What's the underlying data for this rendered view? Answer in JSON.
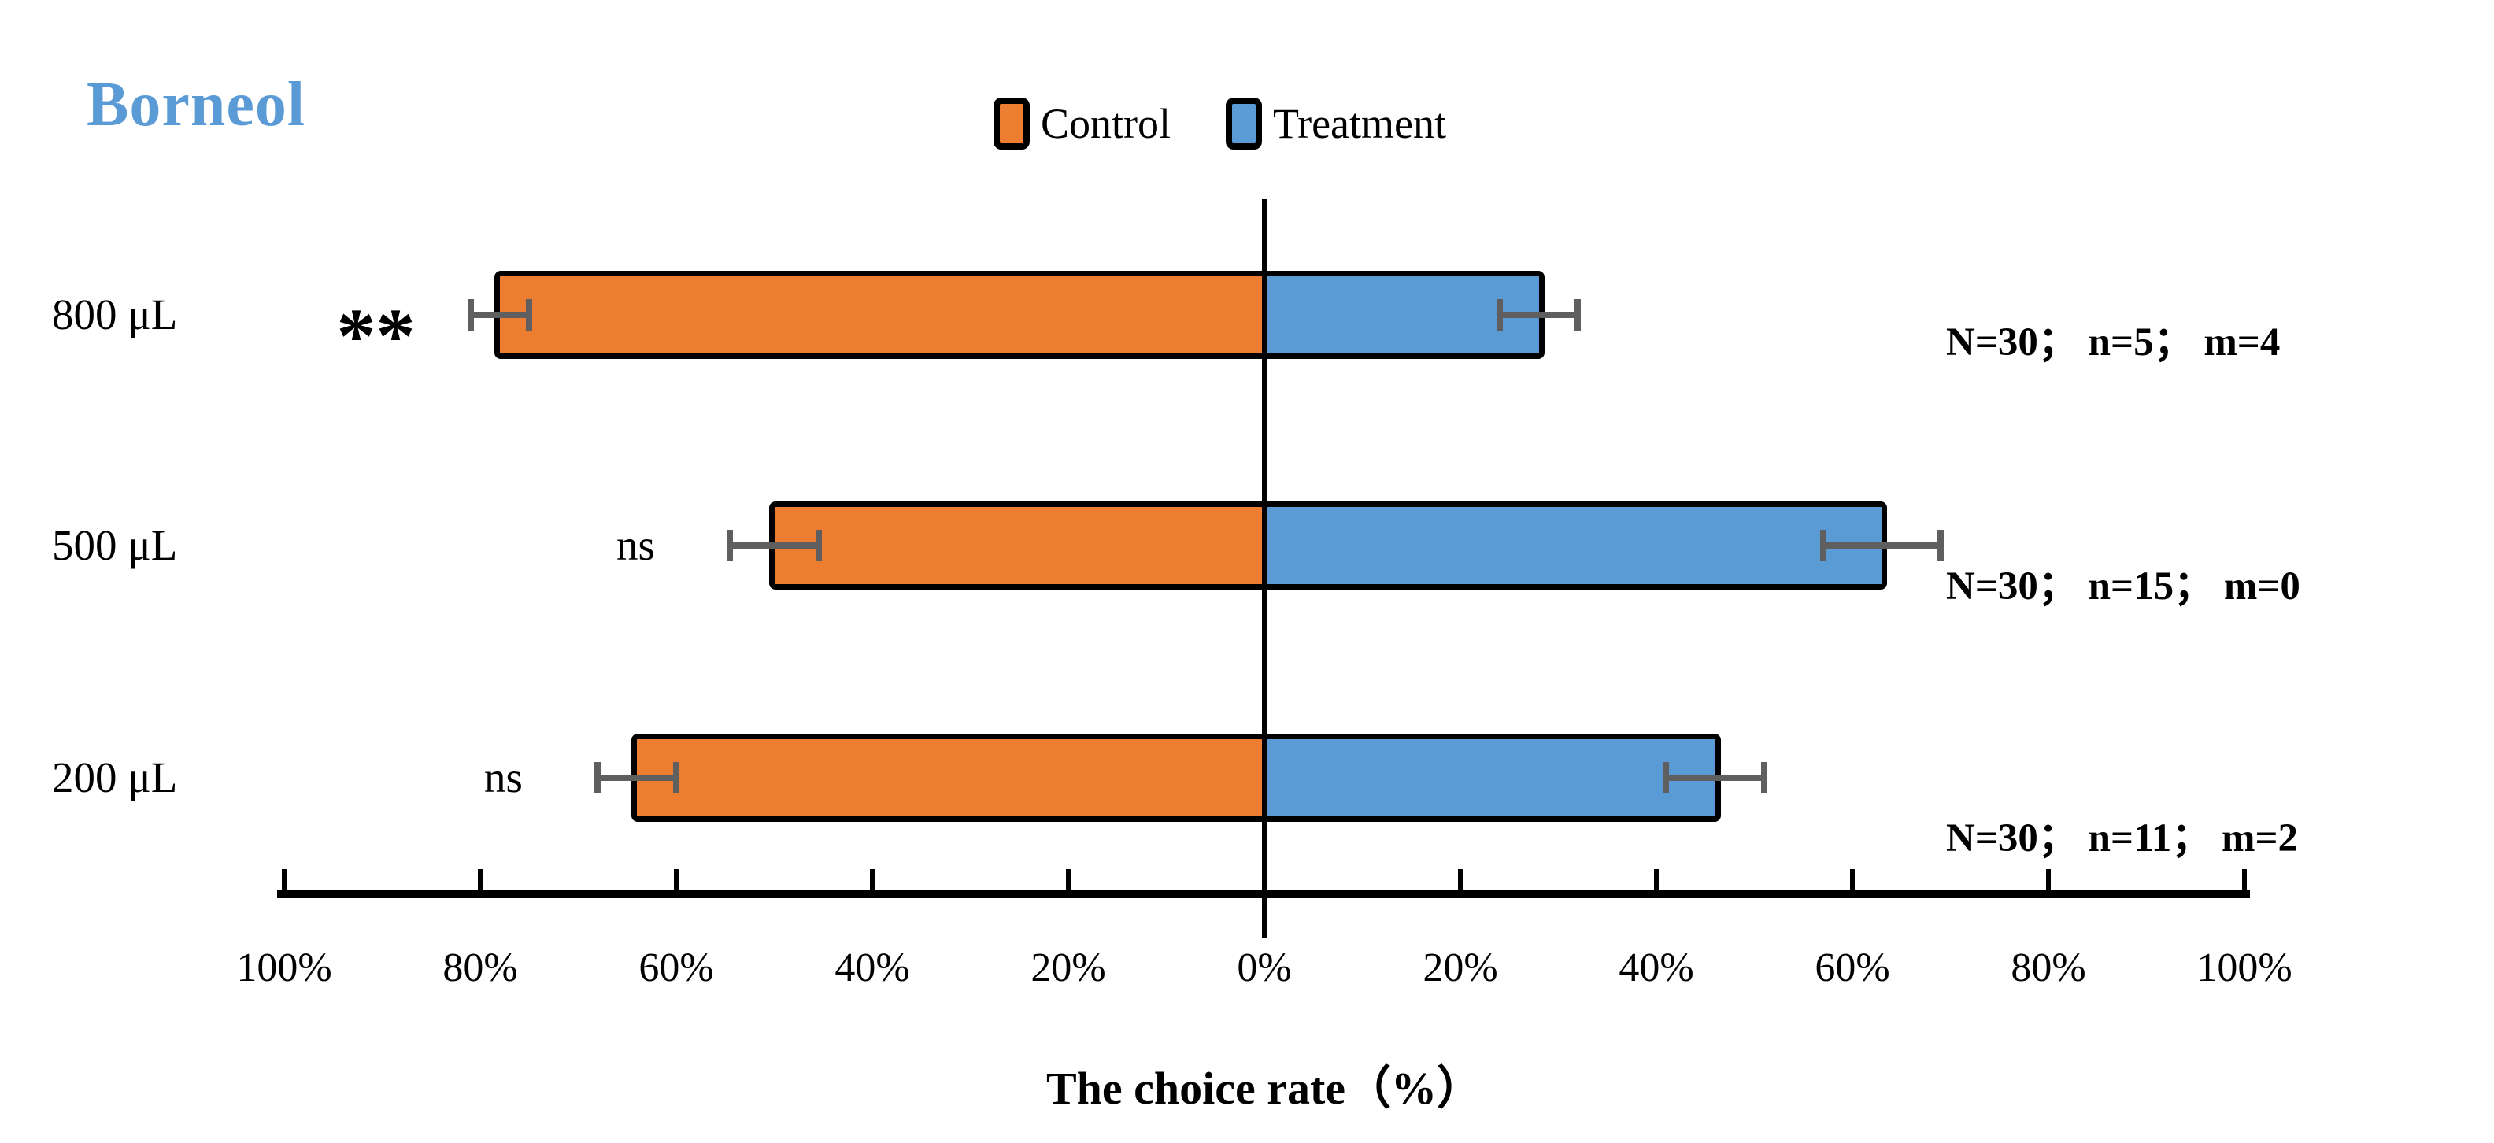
{
  "chart_data": {
    "type": "bar",
    "subtype": "diverging-horizontal",
    "title": "Borneol",
    "title_color": "#5B9BD5",
    "categories": [
      "800 μL",
      "500 μL",
      "200 μL"
    ],
    "series": [
      {
        "name": "Control",
        "color": "#ED7D31",
        "direction": "left",
        "values": [
          78,
          50,
          64
        ],
        "errors": [
          3,
          4.5,
          4
        ]
      },
      {
        "name": "Treatment",
        "color": "#5B9BD5",
        "direction": "right",
        "values": [
          28,
          63,
          46
        ],
        "errors": [
          4,
          6,
          5
        ]
      }
    ],
    "significance": [
      "**",
      "ns",
      "ns"
    ],
    "annotations": [
      "N=30； n=5； m=4",
      "N=30； n=15； m=0",
      "N=30； n=11； m=2"
    ],
    "xlabel": "The choice rate（%）",
    "xlim": [
      -100,
      100
    ],
    "x_ticks_pct": [
      -100,
      -80,
      -60,
      -40,
      -20,
      0,
      20,
      40,
      60,
      80,
      100
    ],
    "x_tick_labels": [
      "100%",
      "80%",
      "60%",
      "40%",
      "20%",
      "0%",
      "20%",
      "40%",
      "60%",
      "80%",
      "100%"
    ],
    "grid": false,
    "legend_position": "top-center",
    "error_bar_color": "#5f5f5f",
    "bar_border_color": "#000000"
  }
}
